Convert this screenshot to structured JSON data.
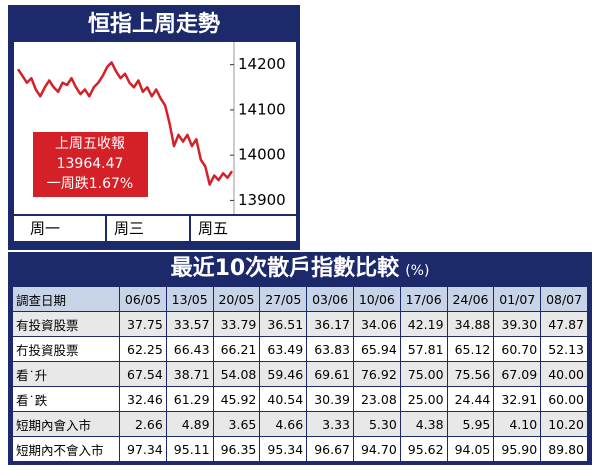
{
  "chart_data": {
    "type": "line",
    "title": "恒指上周走勢",
    "values": [
      14190,
      14175,
      14160,
      14170,
      14145,
      14130,
      14150,
      14165,
      14150,
      14140,
      14160,
      14155,
      14170,
      14150,
      14135,
      14145,
      14130,
      14150,
      14160,
      14175,
      14195,
      14205,
      14185,
      14170,
      14180,
      14160,
      14150,
      14165,
      14140,
      14150,
      14130,
      14145,
      14125,
      14110,
      14070,
      14020,
      14045,
      14030,
      14045,
      14020,
      14035,
      13990,
      13975,
      13935,
      13955,
      13945,
      13960,
      13950,
      13964.47
    ],
    "color": "#d42027",
    "ylim": [
      13870,
      14250
    ],
    "yticks": [
      13900,
      14000,
      14100,
      14200
    ],
    "x_labels": [
      "周一",
      "周三",
      "周五"
    ],
    "annotations": [
      "上周五收報",
      "13964.47",
      "一周跌1.67%"
    ]
  },
  "table": {
    "title": "最近10次散戶指數比較",
    "unit": "(%)",
    "header": [
      "調查日期",
      "06/05",
      "13/05",
      "20/05",
      "27/05",
      "03/06",
      "10/06",
      "17/06",
      "24/06",
      "01/07",
      "08/07"
    ],
    "rows": [
      [
        "有投資股票",
        "37.75",
        "33.57",
        "33.79",
        "36.51",
        "36.17",
        "34.06",
        "42.19",
        "34.88",
        "39.30",
        "47.87"
      ],
      [
        "冇投資股票",
        "62.25",
        "66.43",
        "66.21",
        "63.49",
        "63.83",
        "65.94",
        "57.81",
        "65.12",
        "60.70",
        "52.13"
      ],
      [
        "看˙升",
        "67.54",
        "38.71",
        "54.08",
        "59.46",
        "69.61",
        "76.92",
        "75.00",
        "75.56",
        "67.09",
        "40.00"
      ],
      [
        "看˙跌",
        "32.46",
        "61.29",
        "45.92",
        "40.54",
        "30.39",
        "23.08",
        "25.00",
        "24.44",
        "32.91",
        "60.00"
      ],
      [
        "短期內會入市",
        "2.66",
        "4.89",
        "3.65",
        "4.66",
        "3.33",
        "5.30",
        "4.38",
        "5.95",
        "4.10",
        "10.20"
      ],
      [
        "短期內不會入市",
        "97.34",
        "95.11",
        "96.35",
        "95.34",
        "96.67",
        "94.70",
        "95.62",
        "94.05",
        "95.90",
        "89.80"
      ]
    ]
  }
}
